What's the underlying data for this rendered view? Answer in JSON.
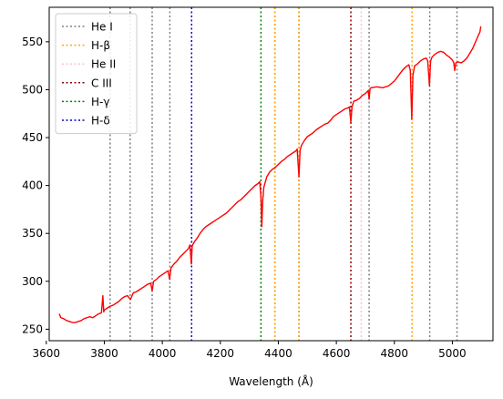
{
  "chart_data": {
    "type": "line",
    "title": "",
    "xlabel": "Wavelength (Å)",
    "ylabel": "",
    "xlim": [
      3610,
      5140
    ],
    "ylim": [
      238,
      586
    ],
    "xticks": [
      3600,
      3800,
      4000,
      4200,
      4400,
      4600,
      4800,
      5000
    ],
    "yticks": [
      250,
      300,
      350,
      400,
      450,
      500,
      550
    ],
    "grid": false,
    "legend_position": "top-left",
    "series": [
      {
        "color": "#ff0000",
        "points": [
          [
            3645,
            266
          ],
          [
            3650,
            262
          ],
          [
            3660,
            261
          ],
          [
            3670,
            259
          ],
          [
            3680,
            258
          ],
          [
            3690,
            257
          ],
          [
            3700,
            257
          ],
          [
            3710,
            258
          ],
          [
            3720,
            259
          ],
          [
            3730,
            261
          ],
          [
            3740,
            262
          ],
          [
            3750,
            263
          ],
          [
            3760,
            262
          ],
          [
            3770,
            264
          ],
          [
            3780,
            266
          ],
          [
            3790,
            267
          ],
          [
            3795,
            285
          ],
          [
            3798,
            268
          ],
          [
            3800,
            270
          ],
          [
            3810,
            272
          ],
          [
            3820,
            274
          ],
          [
            3830,
            275
          ],
          [
            3840,
            277
          ],
          [
            3850,
            279
          ],
          [
            3860,
            282
          ],
          [
            3870,
            284
          ],
          [
            3880,
            285
          ],
          [
            3890,
            281
          ],
          [
            3900,
            288
          ],
          [
            3910,
            289
          ],
          [
            3920,
            291
          ],
          [
            3930,
            293
          ],
          [
            3940,
            295
          ],
          [
            3950,
            297
          ],
          [
            3960,
            298
          ],
          [
            3965,
            290
          ],
          [
            3970,
            300
          ],
          [
            3980,
            302
          ],
          [
            3990,
            305
          ],
          [
            4000,
            307
          ],
          [
            4010,
            309
          ],
          [
            4020,
            311
          ],
          [
            4025,
            302
          ],
          [
            4030,
            314
          ],
          [
            4040,
            318
          ],
          [
            4050,
            321
          ],
          [
            4060,
            325
          ],
          [
            4070,
            328
          ],
          [
            4080,
            331
          ],
          [
            4090,
            334
          ],
          [
            4095,
            338
          ],
          [
            4100,
            318
          ],
          [
            4103,
            337
          ],
          [
            4110,
            341
          ],
          [
            4120,
            345
          ],
          [
            4130,
            350
          ],
          [
            4140,
            354
          ],
          [
            4150,
            357
          ],
          [
            4160,
            359
          ],
          [
            4170,
            361
          ],
          [
            4180,
            363
          ],
          [
            4190,
            365
          ],
          [
            4200,
            367
          ],
          [
            4210,
            369
          ],
          [
            4220,
            371
          ],
          [
            4230,
            374
          ],
          [
            4240,
            377
          ],
          [
            4250,
            380
          ],
          [
            4260,
            383
          ],
          [
            4270,
            385
          ],
          [
            4280,
            388
          ],
          [
            4290,
            391
          ],
          [
            4300,
            394
          ],
          [
            4310,
            397
          ],
          [
            4320,
            400
          ],
          [
            4330,
            402
          ],
          [
            4336,
            404
          ],
          [
            4340,
            388
          ],
          [
            4343,
            357
          ],
          [
            4346,
            384
          ],
          [
            4350,
            398
          ],
          [
            4360,
            409
          ],
          [
            4370,
            414
          ],
          [
            4380,
            417
          ],
          [
            4390,
            419
          ],
          [
            4400,
            422
          ],
          [
            4410,
            425
          ],
          [
            4420,
            427
          ],
          [
            4430,
            430
          ],
          [
            4440,
            432
          ],
          [
            4450,
            434
          ],
          [
            4460,
            436
          ],
          [
            4465,
            438
          ],
          [
            4471,
            409
          ],
          [
            4475,
            437
          ],
          [
            4480,
            442
          ],
          [
            4490,
            447
          ],
          [
            4500,
            451
          ],
          [
            4510,
            453
          ],
          [
            4520,
            455
          ],
          [
            4530,
            458
          ],
          [
            4540,
            460
          ],
          [
            4550,
            462
          ],
          [
            4560,
            464
          ],
          [
            4570,
            465
          ],
          [
            4580,
            468
          ],
          [
            4590,
            472
          ],
          [
            4600,
            474
          ],
          [
            4610,
            476
          ],
          [
            4620,
            478
          ],
          [
            4630,
            480
          ],
          [
            4640,
            481
          ],
          [
            4645,
            482
          ],
          [
            4650,
            466
          ],
          [
            4654,
            482
          ],
          [
            4660,
            488
          ],
          [
            4670,
            489
          ],
          [
            4680,
            491
          ],
          [
            4690,
            494
          ],
          [
            4700,
            496
          ],
          [
            4710,
            499
          ],
          [
            4713,
            490
          ],
          [
            4716,
            501
          ],
          [
            4720,
            502
          ],
          [
            4740,
            503
          ],
          [
            4760,
            502
          ],
          [
            4780,
            504
          ],
          [
            4800,
            509
          ],
          [
            4810,
            513
          ],
          [
            4820,
            517
          ],
          [
            4830,
            521
          ],
          [
            4840,
            524
          ],
          [
            4850,
            526
          ],
          [
            4855,
            520
          ],
          [
            4860,
            469
          ],
          [
            4864,
            515
          ],
          [
            4870,
            525
          ],
          [
            4880,
            527
          ],
          [
            4890,
            530
          ],
          [
            4900,
            532
          ],
          [
            4910,
            533
          ],
          [
            4915,
            530
          ],
          [
            4921,
            504
          ],
          [
            4925,
            530
          ],
          [
            4930,
            534
          ],
          [
            4940,
            537
          ],
          [
            4950,
            539
          ],
          [
            4960,
            540
          ],
          [
            4970,
            539
          ],
          [
            4980,
            536
          ],
          [
            4990,
            534
          ],
          [
            5000,
            531
          ],
          [
            5005,
            528
          ],
          [
            5008,
            520
          ],
          [
            5012,
            528
          ],
          [
            5020,
            529
          ],
          [
            5030,
            528
          ],
          [
            5040,
            530
          ],
          [
            5050,
            533
          ],
          [
            5060,
            538
          ],
          [
            5070,
            543
          ],
          [
            5080,
            550
          ],
          [
            5090,
            557
          ],
          [
            5095,
            560
          ],
          [
            5098,
            566
          ]
        ]
      }
    ],
    "lines": [
      {
        "name": "He I",
        "color": "#808080",
        "x": [
          3820,
          3889,
          3965,
          4026,
          4388,
          4471,
          4713,
          4922,
          5016
        ]
      },
      {
        "name": "H-β",
        "color": "#ffa500",
        "x": [
          4388,
          4471,
          4861
        ]
      },
      {
        "name": "He II",
        "color": "#ffc0cb",
        "x": [
          4686
        ]
      },
      {
        "name": "C III",
        "color": "#8b0000",
        "x": [
          4650
        ]
      },
      {
        "name": "H-γ",
        "color": "#008000",
        "x": [
          4340
        ]
      },
      {
        "name": "H-δ",
        "color": "#0000cd",
        "x": [
          4101
        ]
      }
    ]
  }
}
